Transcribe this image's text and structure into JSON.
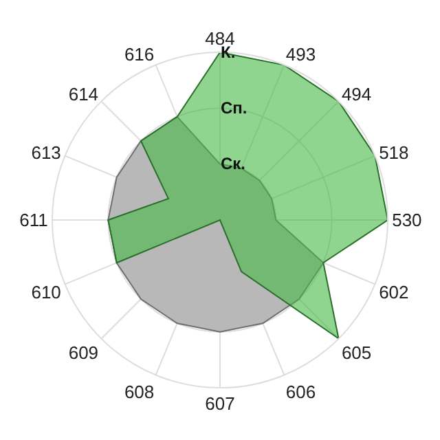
{
  "chart_data": {
    "type": "radar",
    "categories": [
      "484",
      "493",
      "494",
      "518",
      "530",
      "602",
      "605",
      "606",
      "607",
      "608",
      "609",
      "610",
      "611",
      "613",
      "614",
      "616"
    ],
    "series": [
      {
        "color": "#b8b8b8",
        "values": [
          1,
          1,
          1,
          1,
          1,
          2,
          2,
          2,
          2,
          2,
          2,
          2,
          2,
          2,
          2,
          2
        ]
      },
      {
        "color": "#44b944",
        "values": [
          3,
          3,
          3,
          3,
          3,
          2,
          3,
          1,
          0,
          0,
          0,
          2,
          2,
          1,
          2,
          2
        ]
      }
    ],
    "ylim": [
      0,
      3
    ],
    "yticks": [
      {
        "value": 1,
        "label": "Ск."
      },
      {
        "value": 2,
        "label": "Сп."
      },
      {
        "value": 3,
        "label": "К."
      }
    ],
    "grid": true
  }
}
